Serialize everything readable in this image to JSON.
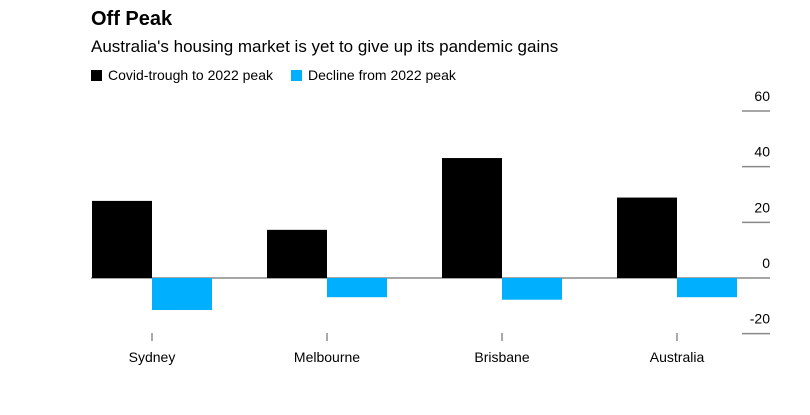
{
  "chart_data": {
    "type": "bar",
    "title": "Off Peak",
    "subtitle": "Australia's housing market is yet to give up its pandemic gains",
    "categories": [
      "Sydney",
      "Melbourne",
      "Brisbane",
      "Australia"
    ],
    "series": [
      {
        "name": "Covid-trough to 2022 peak",
        "values": [
          27.7,
          17.3,
          43.1,
          28.9
        ],
        "color": "#000000"
      },
      {
        "name": "Decline from 2022 peak",
        "values": [
          -11.5,
          -6.9,
          -7.8,
          -6.9
        ],
        "color": "#00b0ff"
      }
    ],
    "yticks": [
      60,
      40,
      20,
      0,
      -20
    ],
    "ylim": [
      -20,
      60
    ],
    "legend": "top-left",
    "grid": false
  }
}
